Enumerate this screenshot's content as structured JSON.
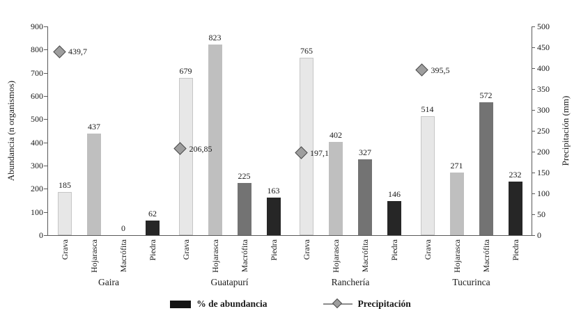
{
  "chart_data": {
    "type": "bar",
    "title": "",
    "left_axis": {
      "label": "Abundancia (n organismos)",
      "min": 0,
      "max": 900,
      "step": 100
    },
    "right_axis": {
      "label": "Precipitación (mm)",
      "min": 0,
      "max": 500,
      "step": 50
    },
    "groups": [
      "Gaira",
      "Guatapurí",
      "Ranchería",
      "Tucurinca"
    ],
    "categories": [
      "Grava",
      "Hojarasca",
      "Macrófita",
      "Piedra"
    ],
    "category_colors": [
      "#e7e7e7",
      "#bfbfbf",
      "#737373",
      "#262626"
    ],
    "abundance": [
      [
        185,
        437,
        0,
        62
      ],
      [
        679,
        823,
        225,
        163
      ],
      [
        765,
        402,
        327,
        146
      ],
      [
        514,
        271,
        572,
        232
      ]
    ],
    "precipitation": {
      "values": [
        439.7,
        206.85,
        197.1,
        395.5
      ],
      "labels": [
        "439,7",
        "206,85",
        "197,1",
        "395,5"
      ]
    },
    "legend": [
      {
        "label": "% de abundancia"
      },
      {
        "label": "Precipitación"
      }
    ],
    "grid": "off",
    "legend_position": "bottom"
  }
}
